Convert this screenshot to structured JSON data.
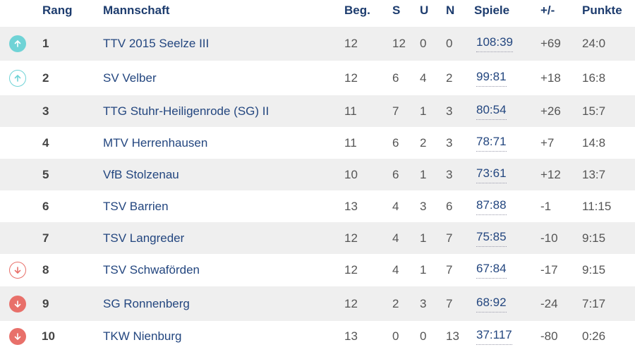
{
  "colors": {
    "promotion": "#6fd3d6",
    "relegation": "#e8706a",
    "header": "#1d3c6e",
    "team": "#23467f"
  },
  "header": {
    "rank": "Rang",
    "team": "Mannschaft",
    "played": "Beg.",
    "won": "S",
    "drawn": "U",
    "lost": "N",
    "games": "Spiele",
    "diff": "+/-",
    "points": "Punkte"
  },
  "rows": [
    {
      "indicator": "promotion-filled",
      "rank": "1",
      "team": "TTV 2015 Seelze III",
      "played": "12",
      "won": "12",
      "drawn": "0",
      "lost": "0",
      "games": "108:39",
      "diff": "+69",
      "points": "24:0"
    },
    {
      "indicator": "promotion-outline",
      "rank": "2",
      "team": "SV Velber",
      "played": "12",
      "won": "6",
      "drawn": "4",
      "lost": "2",
      "games": "99:81",
      "diff": "+18",
      "points": "16:8"
    },
    {
      "indicator": "none",
      "rank": "3",
      "team": "TTG Stuhr-Heiligenrode (SG) II",
      "played": "11",
      "won": "7",
      "drawn": "1",
      "lost": "3",
      "games": "80:54",
      "diff": "+26",
      "points": "15:7"
    },
    {
      "indicator": "none",
      "rank": "4",
      "team": "MTV Herrenhausen",
      "played": "11",
      "won": "6",
      "drawn": "2",
      "lost": "3",
      "games": "78:71",
      "diff": "+7",
      "points": "14:8"
    },
    {
      "indicator": "none",
      "rank": "5",
      "team": "VfB Stolzenau",
      "played": "10",
      "won": "6",
      "drawn": "1",
      "lost": "3",
      "games": "73:61",
      "diff": "+12",
      "points": "13:7"
    },
    {
      "indicator": "none",
      "rank": "6",
      "team": "TSV Barrien",
      "played": "13",
      "won": "4",
      "drawn": "3",
      "lost": "6",
      "games": "87:88",
      "diff": "-1",
      "points": "11:15"
    },
    {
      "indicator": "none",
      "rank": "7",
      "team": "TSV Langreder",
      "played": "12",
      "won": "4",
      "drawn": "1",
      "lost": "7",
      "games": "75:85",
      "diff": "-10",
      "points": "9:15"
    },
    {
      "indicator": "relegation-outline",
      "rank": "8",
      "team": "TSV Schwaförden",
      "played": "12",
      "won": "4",
      "drawn": "1",
      "lost": "7",
      "games": "67:84",
      "diff": "-17",
      "points": "9:15"
    },
    {
      "indicator": "relegation-filled",
      "rank": "9",
      "team": "SG Ronnenberg",
      "played": "12",
      "won": "2",
      "drawn": "3",
      "lost": "7",
      "games": "68:92",
      "diff": "-24",
      "points": "7:17"
    },
    {
      "indicator": "relegation-filled",
      "rank": "10",
      "team": "TKW Nienburg",
      "played": "13",
      "won": "0",
      "drawn": "0",
      "lost": "13",
      "games": "37:117",
      "diff": "-80",
      "points": "0:26"
    }
  ]
}
